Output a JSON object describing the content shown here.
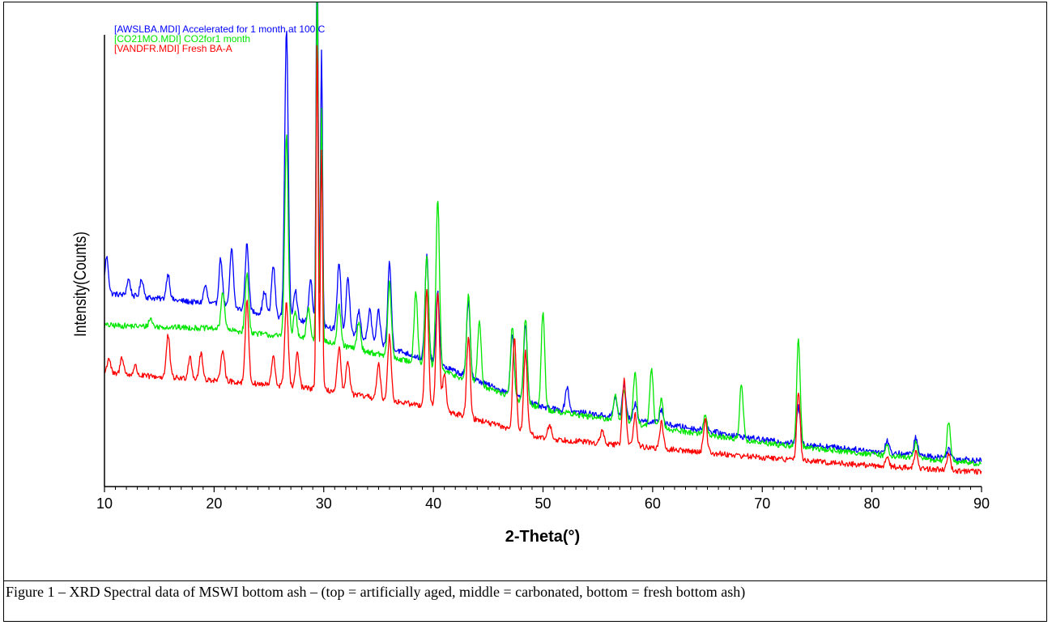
{
  "chart_data": {
    "type": "line",
    "title": "",
    "xlabel": "2-Theta(°)",
    "ylabel": "Intensity(Counts)",
    "xlim": [
      10,
      90
    ],
    "xticks": [
      10,
      20,
      30,
      40,
      50,
      60,
      70,
      80,
      90
    ],
    "y_tick_labels_shown": false,
    "grid": false,
    "legend_position": "top-left",
    "legend": [
      {
        "text": "[AWSLBA.MDI] Accelerated for 1 month at 100 C",
        "color": "#0000ff"
      },
      {
        "text": "[CO21MO.MDI] CO2for1 month",
        "color": "#00e600"
      },
      {
        "text": "[VANDFR.MDI] Fresh BA-A",
        "color": "#ff0000"
      }
    ],
    "series": [
      {
        "name": "[AWSLBA.MDI] Accelerated for 1 month at 100 C",
        "color": "#0000ff",
        "baseline": [
          [
            10,
            240
          ],
          [
            20,
            226
          ],
          [
            30,
            200
          ],
          [
            40,
            154
          ],
          [
            50,
            98
          ],
          [
            60,
            80
          ],
          [
            70,
            58
          ],
          [
            80,
            44
          ],
          [
            90,
            32
          ]
        ],
        "peaks": [
          [
            10.2,
            45
          ],
          [
            12.2,
            20
          ],
          [
            13.4,
            22
          ],
          [
            15.8,
            32
          ],
          [
            19.2,
            22
          ],
          [
            20.6,
            58
          ],
          [
            21.6,
            72
          ],
          [
            23.0,
            82
          ],
          [
            24.6,
            28
          ],
          [
            25.4,
            62
          ],
          [
            26.6,
            360
          ],
          [
            27.4,
            38
          ],
          [
            28.8,
            55
          ],
          [
            29.4,
            500
          ],
          [
            29.8,
            340
          ],
          [
            31.4,
            85
          ],
          [
            32.2,
            70
          ],
          [
            33.2,
            32
          ],
          [
            34.2,
            38
          ],
          [
            35.0,
            40
          ],
          [
            36.0,
            105
          ],
          [
            39.4,
            130
          ],
          [
            40.4,
            88
          ],
          [
            43.2,
            95
          ],
          [
            47.2,
            75
          ],
          [
            48.4,
            95
          ],
          [
            52.2,
            30
          ],
          [
            56.6,
            25
          ],
          [
            57.4,
            42
          ],
          [
            58.4,
            20
          ],
          [
            60.8,
            18
          ],
          [
            64.8,
            15
          ],
          [
            73.3,
            45
          ],
          [
            81.4,
            15
          ],
          [
            84.0,
            22
          ],
          [
            87.0,
            12
          ]
        ]
      },
      {
        "name": "[CO21MO.MDI] CO2for1 month",
        "color": "#00e600",
        "baseline": [
          [
            10,
            200
          ],
          [
            20,
            196
          ],
          [
            30,
            180
          ],
          [
            40,
            148
          ],
          [
            50,
            96
          ],
          [
            60,
            74
          ],
          [
            70,
            54
          ],
          [
            80,
            40
          ],
          [
            90,
            28
          ]
        ],
        "peaks": [
          [
            14.2,
            10
          ],
          [
            20.8,
            48
          ],
          [
            23.0,
            72
          ],
          [
            26.6,
            250
          ],
          [
            27.4,
            32
          ],
          [
            28.6,
            40
          ],
          [
            29.4,
            450
          ],
          [
            29.8,
            290
          ],
          [
            31.4,
            48
          ],
          [
            33.2,
            35
          ],
          [
            36.0,
            92
          ],
          [
            38.4,
            90
          ],
          [
            39.4,
            135
          ],
          [
            40.4,
            210
          ],
          [
            43.2,
            108
          ],
          [
            44.2,
            80
          ],
          [
            47.2,
            88
          ],
          [
            48.4,
            105
          ],
          [
            50.0,
            120
          ],
          [
            56.6,
            35
          ],
          [
            57.4,
            42
          ],
          [
            58.4,
            62
          ],
          [
            59.9,
            72
          ],
          [
            60.8,
            35
          ],
          [
            64.8,
            25
          ],
          [
            68.1,
            70
          ],
          [
            73.3,
            135
          ],
          [
            81.4,
            12
          ],
          [
            84.0,
            20
          ],
          [
            87.0,
            50
          ]
        ]
      },
      {
        "name": "[VANDFR.MDI] Fresh BA-A",
        "color": "#ff0000",
        "baseline": [
          [
            10,
            140
          ],
          [
            20,
            132
          ],
          [
            30,
            120
          ],
          [
            40,
            98
          ],
          [
            50,
            60
          ],
          [
            60,
            48
          ],
          [
            70,
            36
          ],
          [
            80,
            26
          ],
          [
            90,
            18
          ]
        ],
        "peaks": [
          [
            10.4,
            20
          ],
          [
            11.6,
            22
          ],
          [
            12.8,
            12
          ],
          [
            15.8,
            52
          ],
          [
            17.8,
            28
          ],
          [
            18.8,
            32
          ],
          [
            20.8,
            40
          ],
          [
            23.0,
            100
          ],
          [
            25.4,
            35
          ],
          [
            26.6,
            105
          ],
          [
            27.6,
            42
          ],
          [
            29.4,
            440
          ],
          [
            29.8,
            300
          ],
          [
            31.4,
            55
          ],
          [
            32.2,
            42
          ],
          [
            35.0,
            42
          ],
          [
            36.0,
            80
          ],
          [
            39.4,
            145
          ],
          [
            40.4,
            142
          ],
          [
            41.0,
            45
          ],
          [
            43.2,
            100
          ],
          [
            47.4,
            115
          ],
          [
            48.4,
            100
          ],
          [
            50.6,
            18
          ],
          [
            55.4,
            15
          ],
          [
            57.4,
            82
          ],
          [
            58.4,
            40
          ],
          [
            60.8,
            32
          ],
          [
            64.8,
            42
          ],
          [
            73.3,
            82
          ],
          [
            81.4,
            12
          ],
          [
            84.0,
            20
          ],
          [
            87.0,
            22
          ]
        ]
      }
    ]
  },
  "caption": {
    "text": "Figure 1 – XRD Spectral data of MSWI bottom ash – (top = artificially aged, middle = carbonated,          bottom = fresh bottom ash)"
  },
  "colors": {
    "axis": "#000000",
    "frame": "#000000",
    "background": "#ffffff"
  }
}
